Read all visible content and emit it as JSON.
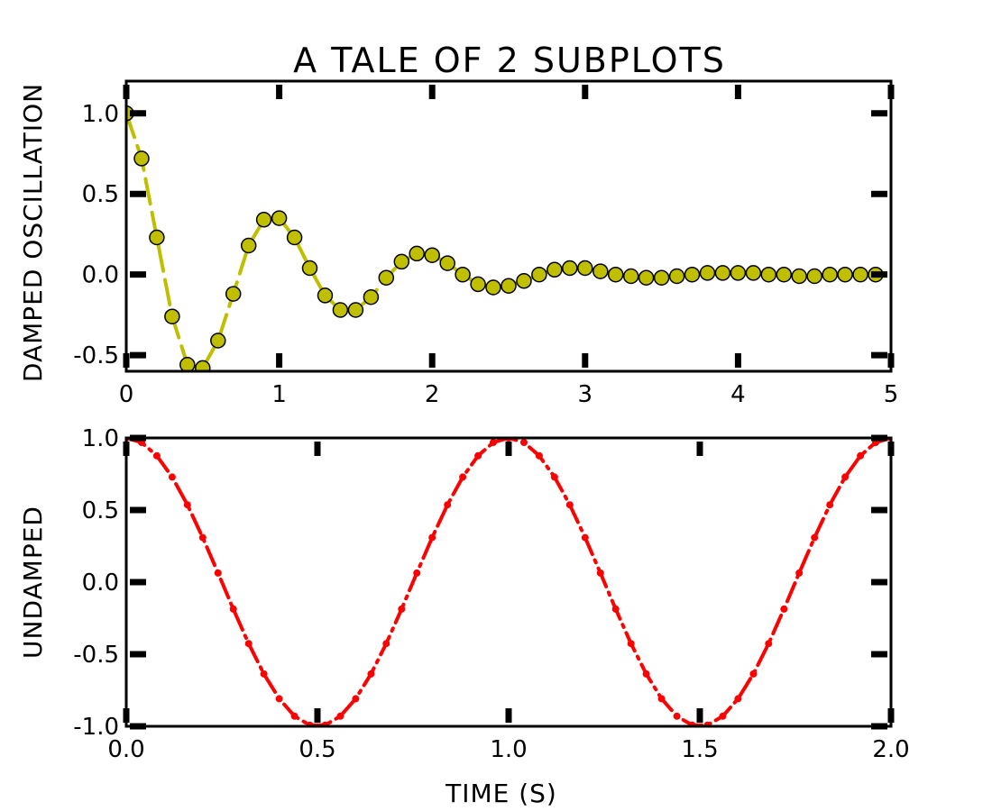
{
  "figure": {
    "title": "A TALE OF 2 SUBPLOTS"
  },
  "chart_data": [
    {
      "type": "line",
      "title": "A TALE OF 2 SUBPLOTS",
      "xlabel": "",
      "ylabel": "DAMPED OSCILLATION",
      "xlim": [
        0,
        5
      ],
      "ylim": [
        -0.6,
        1.2
      ],
      "xticks": [
        0,
        1,
        2,
        3,
        4,
        5
      ],
      "xtick_labels": [
        "0",
        "1",
        "2",
        "3",
        "4",
        "5"
      ],
      "yticks": [
        -0.5,
        0.0,
        0.5,
        1.0
      ],
      "ytick_labels": [
        "-0.5",
        "0.0",
        "0.5",
        "1.0"
      ],
      "grid": false,
      "series": [
        {
          "style": "yellow dashed line with circle markers",
          "color": "#BFBF00",
          "marker_color": "#BFBF00",
          "x": [
            0.0,
            0.1,
            0.2,
            0.3,
            0.4,
            0.5,
            0.6,
            0.7,
            0.8,
            0.9,
            1.0,
            1.1,
            1.2,
            1.3,
            1.4,
            1.5,
            1.6,
            1.7,
            1.8,
            1.9,
            2.0,
            2.1,
            2.2,
            2.3,
            2.4,
            2.5,
            2.6,
            2.7,
            2.8,
            2.9,
            3.0,
            3.1,
            3.2,
            3.3,
            3.4,
            3.5,
            3.6,
            3.7,
            3.8,
            3.9,
            4.0,
            4.1,
            4.2,
            4.3,
            4.4,
            4.5,
            4.6,
            4.7,
            4.8,
            4.9
          ],
          "y": [
            1.0,
            0.72,
            0.23,
            -0.26,
            -0.56,
            -0.58,
            -0.41,
            -0.12,
            0.18,
            0.34,
            0.35,
            0.23,
            0.04,
            -0.13,
            -0.22,
            -0.22,
            -0.14,
            -0.02,
            0.08,
            0.13,
            0.12,
            0.07,
            0.0,
            -0.06,
            -0.08,
            -0.07,
            -0.04,
            0.0,
            0.03,
            0.04,
            0.04,
            0.02,
            0.0,
            -0.01,
            -0.02,
            -0.02,
            -0.01,
            0.0,
            0.01,
            0.01,
            0.01,
            0.01,
            0.0,
            0.0,
            -0.01,
            -0.01,
            0.0,
            0.0,
            0.0,
            0.0
          ]
        }
      ]
    },
    {
      "type": "line",
      "title": "",
      "xlabel": "TIME (S)",
      "ylabel": "UNDAMPED",
      "xlim": [
        0,
        2
      ],
      "ylim": [
        -1,
        1
      ],
      "xticks": [
        0.0,
        0.5,
        1.0,
        1.5,
        2.0
      ],
      "xtick_labels": [
        "0.0",
        "0.5",
        "1.0",
        "1.5",
        "2.0"
      ],
      "yticks": [
        -1.0,
        -0.5,
        0.0,
        0.5,
        1.0
      ],
      "ytick_labels": [
        "-1.0",
        "-0.5",
        "0.0",
        "0.5",
        "1.0"
      ],
      "grid": false,
      "series": [
        {
          "style": "red dash-dot line with dot markers",
          "color": "#FF0000",
          "marker_color": "#FF0000",
          "x": [
            0.0,
            0.04,
            0.08,
            0.12,
            0.16,
            0.2,
            0.24,
            0.28,
            0.32,
            0.36,
            0.4,
            0.44,
            0.48,
            0.52,
            0.56,
            0.6,
            0.64,
            0.68,
            0.72,
            0.76,
            0.8,
            0.84,
            0.88,
            0.92,
            0.96,
            1.0,
            1.04,
            1.08,
            1.12,
            1.16,
            1.2,
            1.24,
            1.28,
            1.32,
            1.36,
            1.4,
            1.44,
            1.48,
            1.52,
            1.56,
            1.6,
            1.64,
            1.68,
            1.72,
            1.76,
            1.8,
            1.84,
            1.88,
            1.92,
            1.96,
            2.0
          ],
          "y": [
            1.0,
            0.969,
            0.876,
            0.729,
            0.536,
            0.309,
            0.063,
            -0.187,
            -0.426,
            -0.637,
            -0.809,
            -0.93,
            -0.992,
            -0.992,
            -0.93,
            -0.809,
            -0.637,
            -0.426,
            -0.187,
            0.063,
            0.309,
            0.536,
            0.729,
            0.876,
            0.969,
            1.0,
            0.969,
            0.876,
            0.729,
            0.536,
            0.309,
            0.063,
            -0.187,
            -0.426,
            -0.637,
            -0.809,
            -0.93,
            -0.992,
            -0.992,
            -0.93,
            -0.809,
            -0.637,
            -0.426,
            -0.187,
            0.063,
            0.309,
            0.536,
            0.729,
            0.876,
            0.969,
            1.0
          ]
        }
      ]
    }
  ]
}
